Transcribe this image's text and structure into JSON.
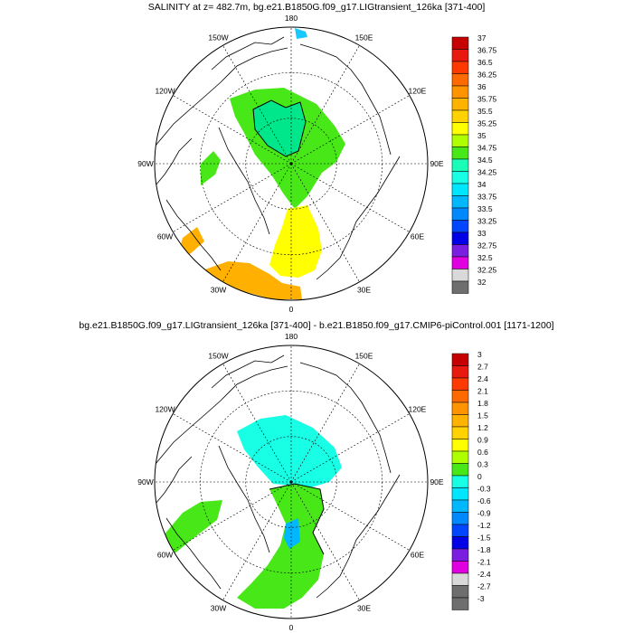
{
  "panels": [
    {
      "title": "SALINITY at z= 482.7m, bg.e21.B1850G.f09_g17.LIGtransient_126ka [371-400]",
      "lon_labels": [
        "180",
        "150E",
        "120E",
        "90E",
        "60E",
        "30E",
        "0",
        "30W",
        "60W",
        "90W",
        "120W",
        "150W"
      ],
      "colorbar_labels": [
        "37",
        "36.75",
        "36.5",
        "36.25",
        "36",
        "35.75",
        "35.5",
        "35.25",
        "35",
        "34.75",
        "34.5",
        "34.25",
        "34",
        "33.75",
        "33.5",
        "33.25",
        "33",
        "32.75",
        "32.5",
        "32.25",
        "32"
      ],
      "colorbar_colors": [
        "#c40000",
        "#e81a10",
        "#ff3a00",
        "#ff6a00",
        "#ff9400",
        "#ffb300",
        "#ffd200",
        "#ffff00",
        "#b0ff00",
        "#48e818",
        "#19ffb8",
        "#19ffe6",
        "#00e6ff",
        "#00b8ff",
        "#0088ff",
        "#0046ff",
        "#0000e6",
        "#7a1fe0",
        "#e000e0",
        "#d9d9d9",
        "#6e6e6e"
      ],
      "field_colors": {
        "main": "#48e818",
        "atlantic_yellow": "#ffff00",
        "atlantic_orange": "#ffb000",
        "pacific_cyan": "#19c8ff"
      }
    },
    {
      "title": "bg.e21.B1850G.f09_g17.LIGtransient_126ka [371-400] - b.e21.B1850.f09_g17.CMIP6-piControl.001 [1171-1200]",
      "lon_labels": [
        "180",
        "150E",
        "120E",
        "90E",
        "60E",
        "30E",
        "0",
        "30W",
        "60W",
        "90W",
        "120W",
        "150W"
      ],
      "colorbar_labels": [
        "3",
        "2.7",
        "2.4",
        "2.1",
        "1.8",
        "1.5",
        "1.2",
        "0.9",
        "0.6",
        "0.3",
        "0",
        "-0.3",
        "-0.6",
        "-0.9",
        "-1.2",
        "-1.5",
        "-1.8",
        "-2.1",
        "-2.4",
        "-2.7",
        "-3"
      ],
      "colorbar_colors": [
        "#c40000",
        "#e81a10",
        "#ff3a00",
        "#ff6a00",
        "#ff9400",
        "#ffb300",
        "#ffd200",
        "#ffff00",
        "#b0ff00",
        "#48e818",
        "#19ffe6",
        "#00e6ff",
        "#00b8ff",
        "#0088ff",
        "#0046ff",
        "#0000e6",
        "#7a1fe0",
        "#e000e0",
        "#d9d9d9",
        "#6e6e6e",
        "#6e6e6e"
      ],
      "field_colors": {
        "main": "#19ffe6",
        "atlantic": "#48e818",
        "strait": "#00b8ff"
      }
    }
  ]
}
